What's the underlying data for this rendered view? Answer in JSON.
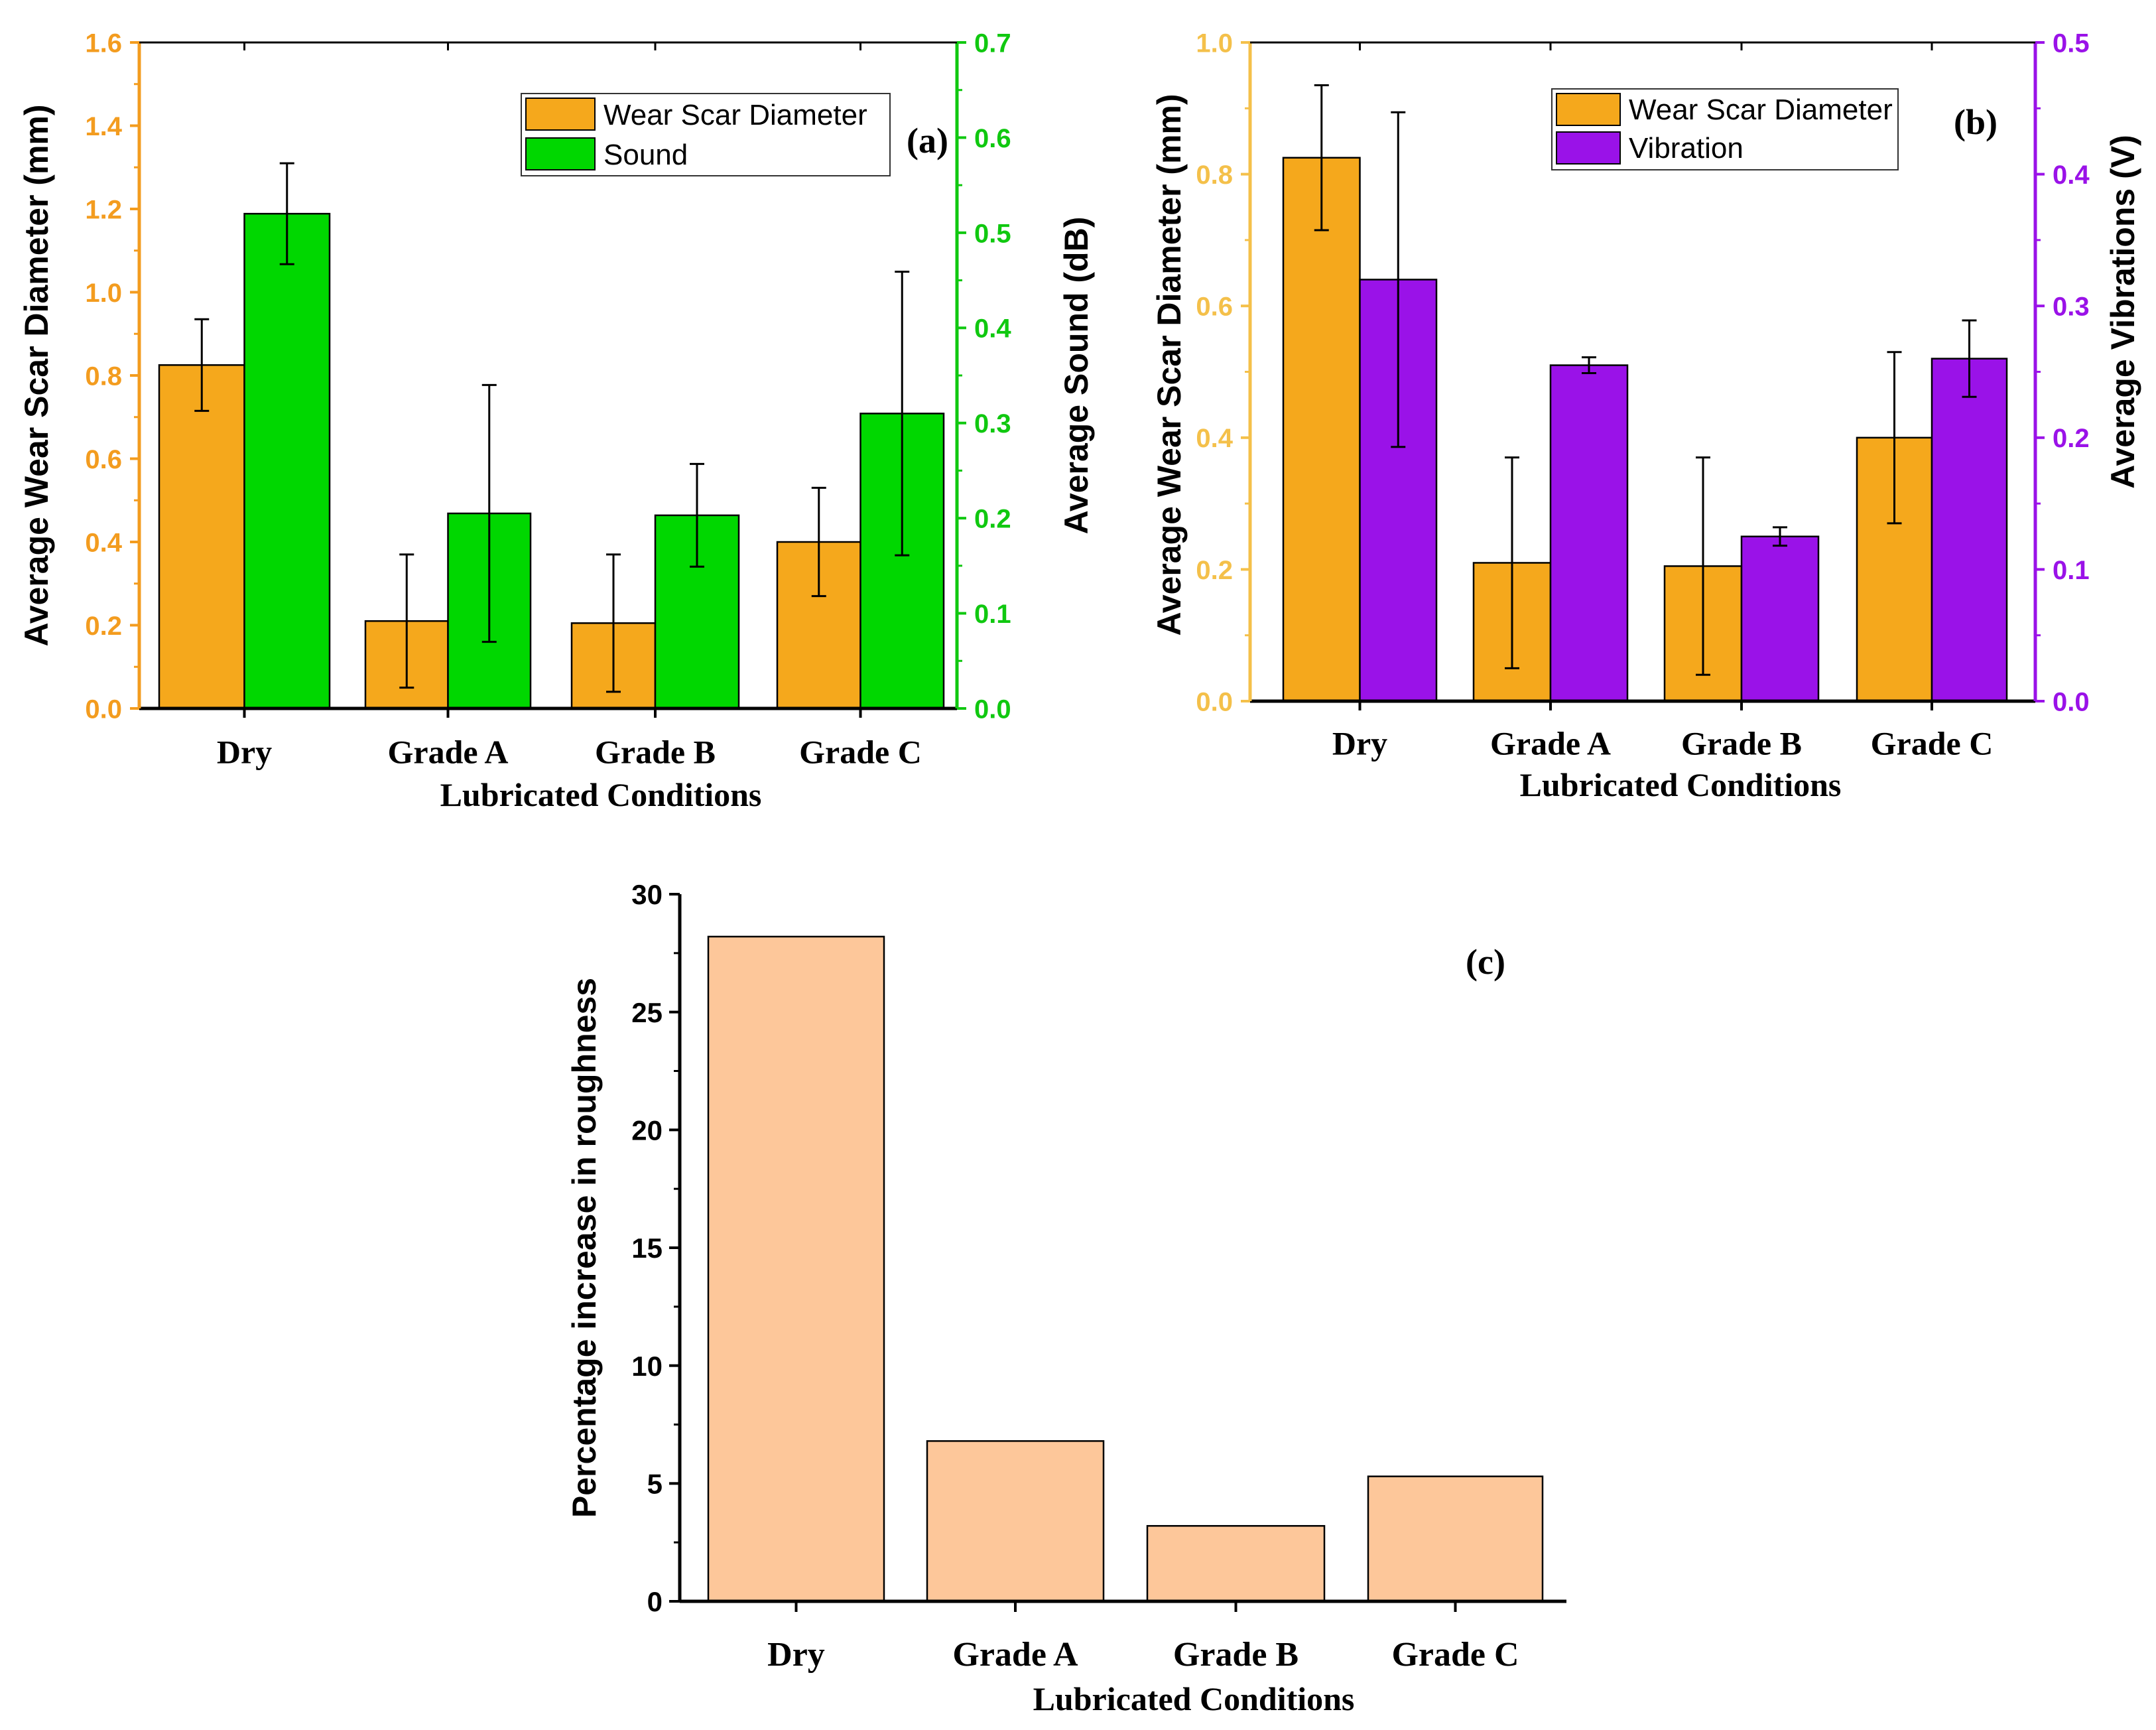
{
  "chart_data": [
    {
      "type": "bar",
      "panel_label": "(a)",
      "categories": [
        "Dry",
        "Grade A",
        "Grade B",
        "Grade C"
      ],
      "xlabel": "Lubricated Conditions",
      "series": [
        {
          "name": "Wear Scar Diameter",
          "axis": "left",
          "color": "#F5A81C",
          "values": [
            0.825,
            0.21,
            0.205,
            0.4
          ],
          "errors": [
            0.11,
            0.16,
            0.165,
            0.13
          ]
        },
        {
          "name": "Sound",
          "axis": "right",
          "color": "#00D700",
          "values": [
            0.52,
            0.205,
            0.203,
            0.31
          ],
          "errors": [
            0.053,
            0.135,
            0.054,
            0.149
          ]
        }
      ],
      "ylabel_left": "Average Wear Scar Diameter (mm)",
      "ylabel_right": "Average Sound (dB)",
      "ylim_left": [
        0,
        1.6
      ],
      "ylim_right": [
        0,
        0.7
      ],
      "yticks_left": [
        "0.0",
        "0.2",
        "0.4",
        "0.6",
        "0.8",
        "1.0",
        "1.2",
        "1.4",
        "1.6"
      ],
      "yticks_right": [
        "0.0",
        "0.1",
        "0.2",
        "0.3",
        "0.4",
        "0.5",
        "0.6",
        "0.7"
      ],
      "left_axis_color": "#F39C1F",
      "right_axis_color": "#10C810",
      "legend": "top-right"
    },
    {
      "type": "bar",
      "panel_label": "(b)",
      "categories": [
        "Dry",
        "Grade A",
        "Grade B",
        "Grade C"
      ],
      "xlabel": "Lubricated Conditions",
      "series": [
        {
          "name": "Wear Scar Diameter",
          "axis": "left",
          "color": "#F5A81C",
          "values": [
            0.825,
            0.21,
            0.205,
            0.4
          ],
          "errors": [
            0.11,
            0.16,
            0.165,
            0.13
          ]
        },
        {
          "name": "Vibration",
          "axis": "right",
          "color": "#9A12E8",
          "values": [
            0.32,
            0.255,
            0.125,
            0.26
          ],
          "errors": [
            0.127,
            0.006,
            0.007,
            0.029
          ]
        }
      ],
      "ylabel_left": "Average Wear Scar Diameter (mm)",
      "ylabel_right": "Average Vibrations (V)",
      "ylim_left": [
        0,
        1.0
      ],
      "ylim_right": [
        0,
        0.5
      ],
      "yticks_left": [
        "0.0",
        "0.2",
        "0.4",
        "0.6",
        "0.8",
        "1.0"
      ],
      "yticks_right": [
        "0.0",
        "0.1",
        "0.2",
        "0.3",
        "0.4",
        "0.5"
      ],
      "left_axis_color": "#F4C04A",
      "right_axis_color": "#9A12E8",
      "legend": "top-right"
    },
    {
      "type": "bar",
      "panel_label": "(c)",
      "categories": [
        "Dry",
        "Grade A",
        "Grade B",
        "Grade C"
      ],
      "xlabel": "Lubricated Conditions",
      "series": [
        {
          "name": "Percentage increase in roughness",
          "axis": "left",
          "color": "#FDC79A",
          "values": [
            28.2,
            6.8,
            3.2,
            5.3
          ]
        }
      ],
      "ylabel_left": "Percentage increase in roughness",
      "ylim_left": [
        0,
        30
      ],
      "yticks_left": [
        "0",
        "5",
        "10",
        "15",
        "20",
        "25",
        "30"
      ],
      "left_axis_color": "#000000"
    }
  ]
}
